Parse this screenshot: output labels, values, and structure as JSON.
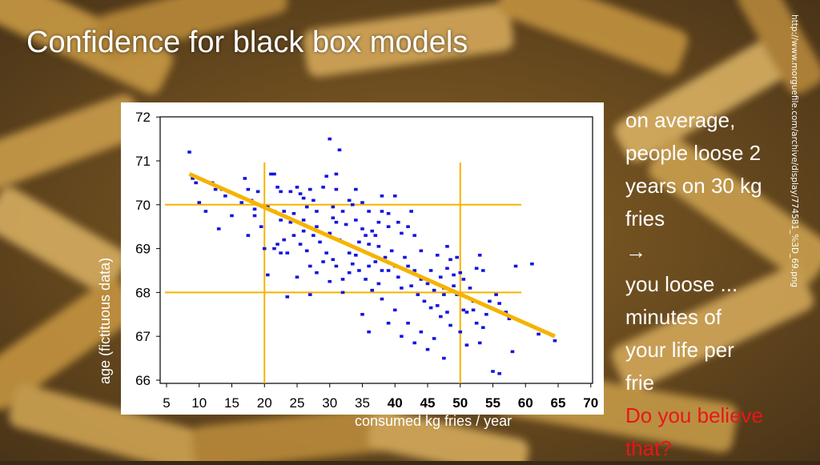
{
  "slide": {
    "title": "Confidence for black box models",
    "image_credit": "http://www.morguefile.com/archive/display/774581_%3D_69.png"
  },
  "side_text": {
    "lines": [
      "on average,",
      "people loose 2",
      "years on 30 kg",
      "fries",
      "→",
      "you loose ...",
      "minutes of",
      "your life per",
      "frie"
    ],
    "question_lines": [
      "Do you believe",
      "that?"
    ]
  },
  "colors": {
    "points": "#1414e0",
    "trend_line": "#f5b400",
    "guide_lines": "#f5b400",
    "question_text": "#e8161c"
  },
  "chart_data": {
    "type": "scatter",
    "title": "",
    "xlabel": "consumed kg fries / year",
    "ylabel": "age (fictituous data)",
    "xlim": [
      5,
      70
    ],
    "ylim": [
      66,
      72
    ],
    "x_ticks": [
      5,
      10,
      15,
      20,
      25,
      30,
      35,
      40,
      45,
      50,
      55,
      60,
      65,
      70
    ],
    "x_tick_labels": [
      "5",
      "10",
      "15",
      "20",
      "25",
      "30",
      "35",
      "40",
      "45",
      "50",
      "55",
      "60",
      "65",
      "70"
    ],
    "y_ticks": [
      66,
      67,
      68,
      69,
      70,
      71,
      72
    ],
    "y_tick_labels": [
      "66",
      "67",
      "68",
      "69",
      "70",
      "71",
      "72"
    ],
    "grid": false,
    "trend_line": {
      "x": [
        8.5,
        64.5
      ],
      "y": [
        70.7,
        67.0
      ]
    },
    "guide_lines": {
      "vertical_x": [
        20,
        50
      ],
      "horizontal_y": [
        70,
        68
      ]
    },
    "points": [
      [
        8.5,
        71.2
      ],
      [
        9,
        70.6
      ],
      [
        9.5,
        70.5
      ],
      [
        10,
        70.05
      ],
      [
        12,
        70.5
      ],
      [
        12.5,
        70.35
      ],
      [
        13.5,
        70.35
      ],
      [
        13,
        69.45
      ],
      [
        15,
        69.75
      ],
      [
        17,
        70.6
      ],
      [
        17.5,
        70.35
      ],
      [
        17.5,
        69.3
      ],
      [
        18,
        70.1
      ],
      [
        18.5,
        69.75
      ],
      [
        18.5,
        69.9
      ],
      [
        19.5,
        69.5
      ],
      [
        20,
        69
      ],
      [
        20.5,
        68.4
      ],
      [
        21,
        70.7
      ],
      [
        21.5,
        70.7
      ],
      [
        22,
        70.4
      ],
      [
        22.5,
        70.3
      ],
      [
        20.5,
        69.95
      ],
      [
        21.5,
        69.85
      ],
      [
        22.5,
        69.65
      ],
      [
        23,
        69.85
      ],
      [
        24,
        70.3
      ],
      [
        24.5,
        69.8
      ],
      [
        23,
        69.2
      ],
      [
        22,
        69.1
      ],
      [
        21.5,
        69
      ],
      [
        23.5,
        68.9
      ],
      [
        24.5,
        69.3
      ],
      [
        25,
        70.4
      ],
      [
        25.5,
        70.25
      ],
      [
        26,
        70.15
      ],
      [
        26,
        69.65
      ],
      [
        26.5,
        69.95
      ],
      [
        27,
        70.35
      ],
      [
        27.5,
        70.1
      ],
      [
        28,
        69.85
      ],
      [
        28,
        69.5
      ],
      [
        25.5,
        69.1
      ],
      [
        26.5,
        68.95
      ],
      [
        27,
        68.6
      ],
      [
        28,
        68.45
      ],
      [
        29,
        70.4
      ],
      [
        29.5,
        70.65
      ],
      [
        30,
        71.5
      ],
      [
        31,
        70.7
      ],
      [
        31.5,
        71.25
      ],
      [
        30.5,
        69.95
      ],
      [
        31,
        69.6
      ],
      [
        32,
        69.85
      ],
      [
        33,
        70.1
      ],
      [
        33.5,
        70
      ],
      [
        34,
        70.35
      ],
      [
        32.5,
        69.55
      ],
      [
        31.5,
        69.2
      ],
      [
        30,
        69.35
      ],
      [
        29.5,
        68.9
      ],
      [
        30.5,
        68.75
      ],
      [
        31,
        68.6
      ],
      [
        32,
        68.3
      ],
      [
        33,
        68.45
      ],
      [
        34,
        68.85
      ],
      [
        34.5,
        69.15
      ],
      [
        35,
        69.45
      ],
      [
        35.5,
        69.3
      ],
      [
        36,
        69.1
      ],
      [
        36.5,
        69.4
      ],
      [
        37,
        69.3
      ],
      [
        37.5,
        69.05
      ],
      [
        38,
        69.85
      ],
      [
        38,
        70.2
      ],
      [
        39,
        69.8
      ],
      [
        39,
        69.5
      ],
      [
        40,
        70.2
      ],
      [
        40.5,
        69.6
      ],
      [
        41,
        69.35
      ],
      [
        42,
        69.5
      ],
      [
        42.5,
        69.85
      ],
      [
        43,
        69.3
      ],
      [
        34.5,
        68.5
      ],
      [
        35.5,
        68.3
      ],
      [
        36,
        68.6
      ],
      [
        36.5,
        68.05
      ],
      [
        37.5,
        68.2
      ],
      [
        38,
        68.5
      ],
      [
        38.5,
        68.8
      ],
      [
        39,
        68.5
      ],
      [
        40,
        68.6
      ],
      [
        40.5,
        68.35
      ],
      [
        41,
        68.1
      ],
      [
        41.5,
        68.8
      ],
      [
        42,
        68.6
      ],
      [
        42.5,
        68.15
      ],
      [
        43,
        68.5
      ],
      [
        43.5,
        67.95
      ],
      [
        44,
        68.3
      ],
      [
        44.5,
        67.8
      ],
      [
        45,
        68.2
      ],
      [
        45.5,
        67.65
      ],
      [
        46,
        68.05
      ],
      [
        46.5,
        67.7
      ],
      [
        47,
        67.45
      ],
      [
        47,
        68.35
      ],
      [
        48,
        69.05
      ],
      [
        48.5,
        68.75
      ],
      [
        48,
        68.55
      ],
      [
        47.5,
        67.95
      ],
      [
        48,
        67.55
      ],
      [
        48.5,
        67.25
      ],
      [
        49,
        68.4
      ],
      [
        49.5,
        67.95
      ],
      [
        50,
        68.45
      ],
      [
        50.5,
        68.3
      ],
      [
        50.5,
        67.6
      ],
      [
        51,
        67.55
      ],
      [
        51.5,
        68.1
      ],
      [
        52,
        67.6
      ],
      [
        52.5,
        68.55
      ],
      [
        53,
        68.85
      ],
      [
        52.5,
        67.3
      ],
      [
        53,
        66.85
      ],
      [
        53.5,
        67.2
      ],
      [
        54,
        67.5
      ],
      [
        55,
        66.2
      ],
      [
        56,
        66.15
      ],
      [
        57.5,
        67.4
      ],
      [
        58,
        66.65
      ],
      [
        58.5,
        68.6
      ],
      [
        61,
        68.65
      ],
      [
        62,
        67.05
      ],
      [
        64.5,
        66.9
      ],
      [
        22.5,
        68.9
      ],
      [
        25,
        68.35
      ],
      [
        23.5,
        67.9
      ],
      [
        27,
        67.95
      ],
      [
        30,
        68.25
      ],
      [
        32,
        68.0
      ],
      [
        35,
        67.5
      ],
      [
        38,
        67.85
      ],
      [
        40,
        67.6
      ],
      [
        42,
        67.3
      ],
      [
        44,
        67.1
      ],
      [
        46,
        66.95
      ],
      [
        47.5,
        66.5
      ],
      [
        45,
        66.7
      ],
      [
        50,
        67.1
      ],
      [
        51,
        66.8
      ],
      [
        52,
        67.8
      ],
      [
        36,
        67.1
      ],
      [
        39,
        67.3
      ],
      [
        41,
        67.0
      ],
      [
        43,
        66.85
      ],
      [
        37,
        68.7
      ],
      [
        39.5,
        68.95
      ],
      [
        33,
        68.9
      ],
      [
        28.5,
        69.15
      ],
      [
        26,
        69.4
      ],
      [
        24,
        69.6
      ],
      [
        19,
        70.3
      ],
      [
        16.5,
        70.05
      ],
      [
        14,
        70.2
      ],
      [
        11,
        69.85
      ],
      [
        30.5,
        69.7
      ],
      [
        34,
        69.65
      ],
      [
        36,
        69.85
      ],
      [
        44,
        68.95
      ],
      [
        46.5,
        68.85
      ],
      [
        49,
        68.15
      ],
      [
        31,
        70.35
      ],
      [
        35,
        70.05
      ],
      [
        37.5,
        69.6
      ],
      [
        27.5,
        69.3
      ],
      [
        29,
        68.7
      ],
      [
        33.5,
        68.65
      ],
      [
        45.5,
        68.5
      ],
      [
        47.5,
        68.1
      ],
      [
        49.5,
        68.8
      ],
      [
        53.5,
        68.5
      ],
      [
        55.5,
        67.95
      ],
      [
        57,
        67.55
      ],
      [
        56,
        67.75
      ],
      [
        54.5,
        67.8
      ]
    ]
  }
}
